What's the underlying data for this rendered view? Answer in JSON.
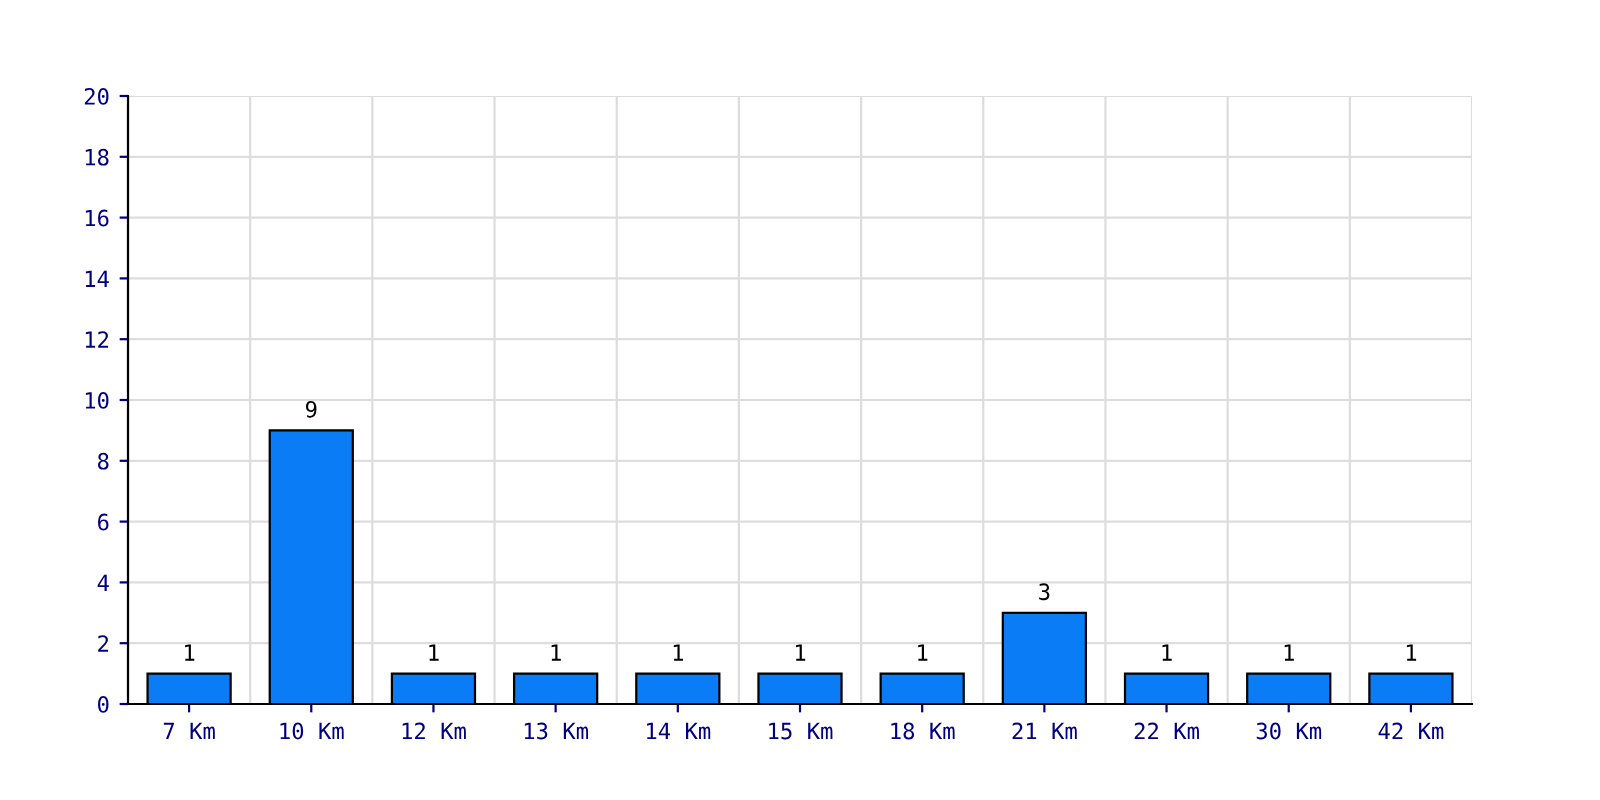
{
  "chart_data": {
    "type": "bar",
    "categories": [
      "7 Km",
      "10 Km",
      "12 Km",
      "13 Km",
      "14 Km",
      "15 Km",
      "18 Km",
      "21 Km",
      "22 Km",
      "30 Km",
      "42 Km"
    ],
    "values": [
      1,
      9,
      1,
      1,
      1,
      1,
      1,
      3,
      1,
      1,
      1
    ],
    "color": "#0a7cf5",
    "ylim": [
      0,
      20
    ],
    "yticks": [
      0,
      2,
      4,
      6,
      8,
      10,
      12,
      14,
      16,
      18,
      20
    ],
    "grid": true,
    "data_labels": true
  }
}
